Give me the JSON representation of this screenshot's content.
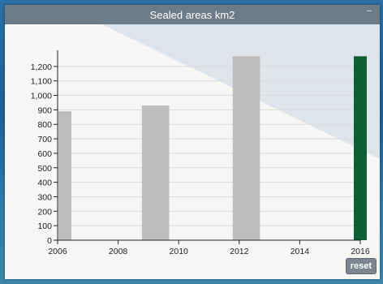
{
  "panel": {
    "title": "Sealed areas km2",
    "minimize_label": "–",
    "reset_label": "reset"
  },
  "chart_data": {
    "type": "bar",
    "title": "Sealed areas km2",
    "xlabel": "",
    "ylabel": "",
    "xlim": [
      2006,
      2016
    ],
    "ylim": [
      0,
      1300
    ],
    "xticks": [
      2006,
      2008,
      2010,
      2012,
      2014,
      2016
    ],
    "yticks": [
      0,
      100,
      200,
      300,
      400,
      500,
      600,
      700,
      800,
      900,
      1000,
      1100,
      1200
    ],
    "ytick_labels": [
      "0",
      "100",
      "200",
      "300",
      "400",
      "500",
      "600",
      "700",
      "800",
      "900",
      "1,000",
      "1,100",
      "1,200"
    ],
    "grid": true,
    "series": [
      {
        "x": [
          2006,
          2009,
          2012,
          2016
        ],
        "values": [
          890,
          930,
          1270,
          1270
        ],
        "colors": [
          "#bdbdbd",
          "#bdbdbd",
          "#bdbdbd",
          "#0d5e35"
        ]
      }
    ]
  }
}
